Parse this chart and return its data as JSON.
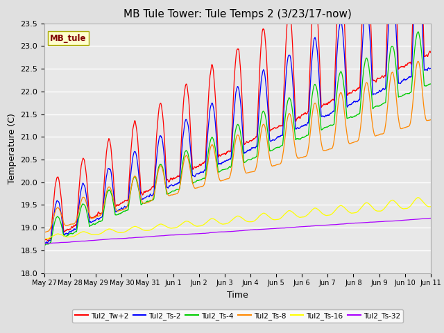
{
  "title": "MB Tule Tower: Tule Temps 2 (3/23/17-now)",
  "xlabel": "Time",
  "ylabel": "Temperature (C)",
  "ylim": [
    18.0,
    23.5
  ],
  "yticks": [
    18.0,
    18.5,
    19.0,
    19.5,
    20.0,
    20.5,
    21.0,
    21.5,
    22.0,
    22.5,
    23.0,
    23.5
  ],
  "xtick_labels": [
    "May 27",
    "May 28",
    "May 29",
    "May 30",
    "May 31",
    "Jun 1",
    "Jun 2",
    "Jun 3",
    "Jun 4",
    "Jun 5",
    "Jun 6",
    "Jun 7",
    "Jun 8",
    "Jun 9",
    "Jun 10",
    "Jun 11"
  ],
  "series_colors": {
    "Tul2_Tw+2": "#ff0000",
    "Tul2_Ts-2": "#0000ff",
    "Tul2_Ts-4": "#00cc00",
    "Tul2_Ts-8": "#ff8800",
    "Tul2_Ts-16": "#ffff00",
    "Tul2_Ts-32": "#aa00ff"
  },
  "legend_label": "MB_tule",
  "bg_color": "#e0e0e0",
  "plot_bg_color": "#e8e8e8",
  "grid_color": "#ffffff",
  "title_fontsize": 11,
  "axis_fontsize": 9,
  "tick_fontsize": 8,
  "figsize": [
    6.4,
    4.8
  ],
  "dpi": 100
}
